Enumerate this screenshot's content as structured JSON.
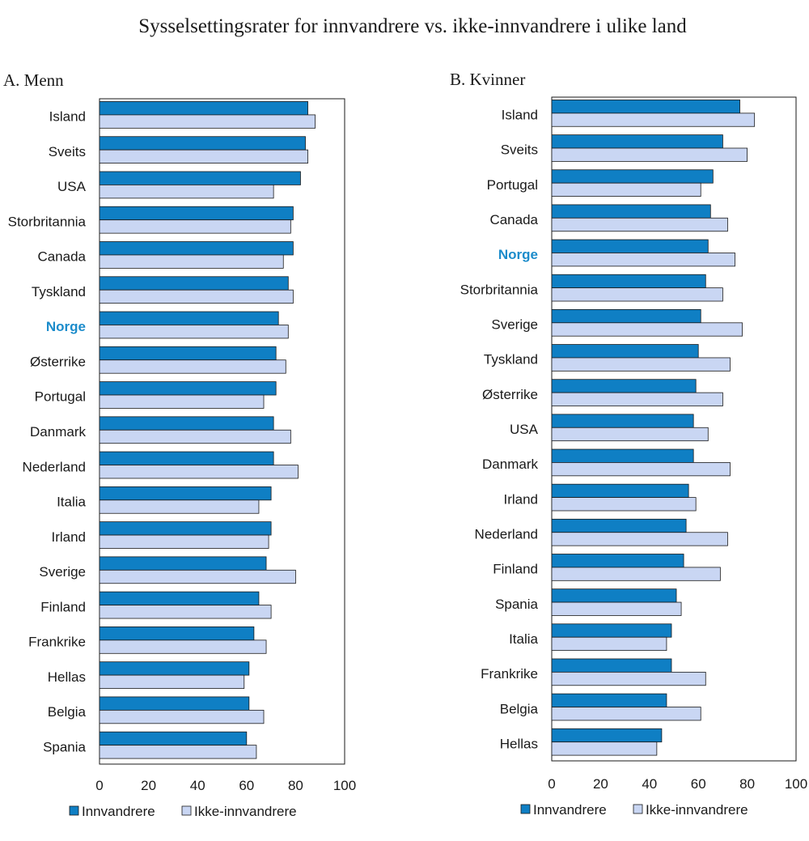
{
  "colors": {
    "immigrant": "#0f7fc4",
    "native": "#c9d6f3",
    "highlight": "#1c8ccb",
    "stroke": "#1a1a1a"
  },
  "chart_data": {
    "type": "bar",
    "orientation": "horizontal",
    "title": "Sysselsettingsrater for innvandrere vs. ikke-innvandrere i ulike land",
    "highlight_category": "Norge",
    "panels": [
      {
        "title": "A. Menn",
        "xlim": [
          0,
          100
        ],
        "xticks": [
          0,
          20,
          40,
          60,
          80,
          100
        ],
        "categories": [
          "Island",
          "Sveits",
          "USA",
          "Storbritannia",
          "Canada",
          "Tyskland",
          "Norge",
          "Østerrike",
          "Portugal",
          "Danmark",
          "Nederland",
          "Italia",
          "Irland",
          "Sverige",
          "Finland",
          "Frankrike",
          "Hellas",
          "Belgia",
          "Spania"
        ],
        "series": [
          {
            "name": "Innvandrere",
            "values": [
              85,
              84,
              82,
              79,
              79,
              77,
              73,
              72,
              72,
              71,
              71,
              70,
              70,
              68,
              65,
              63,
              61,
              61,
              60
            ]
          },
          {
            "name": "Ikke-innvandrere",
            "values": [
              88,
              85,
              71,
              78,
              75,
              79,
              77,
              76,
              67,
              78,
              81,
              65,
              69,
              80,
              70,
              68,
              59,
              67,
              64
            ]
          }
        ],
        "legend": [
          "Innvandrere",
          "Ikke-innvandrere"
        ]
      },
      {
        "title": "B. Kvinner",
        "xlim": [
          0,
          100
        ],
        "xticks": [
          0,
          20,
          40,
          60,
          80,
          100
        ],
        "categories": [
          "Island",
          "Sveits",
          "Portugal",
          "Canada",
          "Norge",
          "Storbritannia",
          "Sverige",
          "Tyskland",
          "Østerrike",
          "USA",
          "Danmark",
          "Irland",
          "Nederland",
          "Finland",
          "Spania",
          "Italia",
          "Frankrike",
          "Belgia",
          "Hellas"
        ],
        "series": [
          {
            "name": "Innvandrere",
            "values": [
              77,
              70,
              66,
              65,
              64,
              63,
              61,
              60,
              59,
              58,
              58,
              56,
              55,
              54,
              51,
              49,
              49,
              47,
              45
            ]
          },
          {
            "name": "Ikke-innvandrere",
            "values": [
              83,
              80,
              61,
              72,
              75,
              70,
              78,
              73,
              70,
              64,
              73,
              59,
              72,
              69,
              53,
              47,
              63,
              61,
              43
            ]
          }
        ],
        "legend": [
          "Innvandrere",
          "Ikke-innvandrere"
        ]
      }
    ]
  }
}
